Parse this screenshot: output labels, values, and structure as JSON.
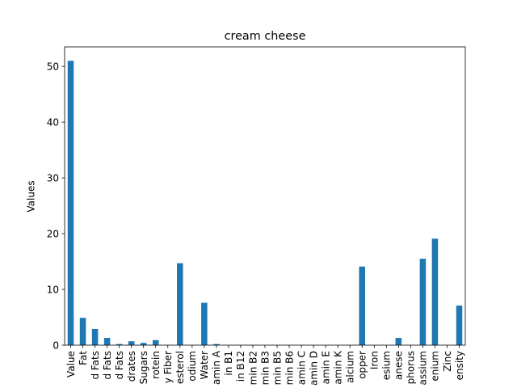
{
  "chart_data": {
    "type": "bar",
    "title": "cream cheese",
    "xlabel": "",
    "ylabel": "Values",
    "ylim": [
      0,
      53.5
    ],
    "yticks": [
      0,
      10,
      20,
      30,
      40,
      50
    ],
    "grid": false,
    "bar_color": "#1f77b4",
    "categories": [
      "Value",
      "Fat",
      "d Fats",
      "d Fats",
      "d Fats",
      "drates",
      "Sugars",
      "rotein",
      "y Fiber",
      "esterol",
      "odium",
      "Water",
      "amin A",
      "in B1",
      "in B12",
      "min B2",
      "min B3",
      "min B5",
      "min B6",
      "amin C",
      "amin D",
      "amin E",
      "amin K",
      "alcium",
      "opper",
      "Iron",
      "esium",
      "anese",
      "phorus",
      "assium",
      "enium",
      "Zinc",
      "ensity"
    ],
    "values": [
      51.0,
      4.9,
      2.9,
      1.3,
      0.2,
      0.7,
      0.4,
      0.9,
      0.0,
      14.7,
      0.0,
      7.6,
      0.2,
      0.0,
      0.0,
      0.0,
      0.0,
      0.0,
      0.0,
      0.0,
      0.0,
      0.0,
      0.0,
      0.0,
      14.1,
      0.0,
      0.0,
      1.3,
      0.0,
      15.5,
      19.1,
      0.0,
      7.1
    ]
  }
}
